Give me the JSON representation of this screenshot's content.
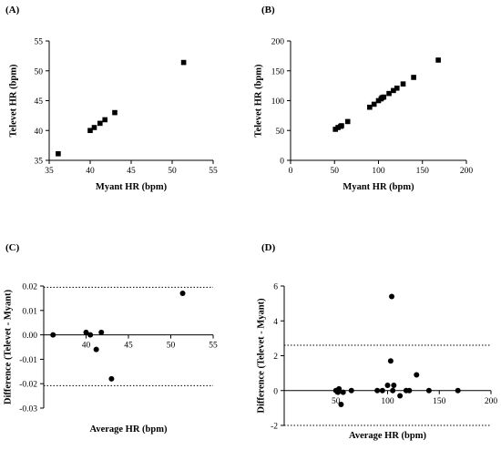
{
  "chart_data": [
    {
      "panel_label": "(A)",
      "type": "scatter",
      "marker": "square",
      "xlabel": "Myant HR (bpm)",
      "ylabel": "Televet HR (bpm)",
      "xlim": [
        35,
        55
      ],
      "ylim": [
        35,
        55
      ],
      "xticks": [
        35,
        40,
        45,
        50,
        55
      ],
      "yticks": [
        35,
        40,
        45,
        50,
        55
      ],
      "points": [
        {
          "x": 36.1,
          "y": 36.1
        },
        {
          "x": 40.0,
          "y": 40.0
        },
        {
          "x": 40.5,
          "y": 40.5
        },
        {
          "x": 41.2,
          "y": 41.2
        },
        {
          "x": 41.8,
          "y": 41.8
        },
        {
          "x": 43.0,
          "y": 43.0
        },
        {
          "x": 51.4,
          "y": 51.4
        }
      ]
    },
    {
      "panel_label": "(B)",
      "type": "scatter",
      "marker": "square",
      "xlabel": "Myant HR (bpm)",
      "ylabel": "Televet HR (bpm)",
      "xlim": [
        0,
        200
      ],
      "ylim": [
        0,
        200
      ],
      "xticks": [
        0,
        50,
        100,
        150,
        200
      ],
      "yticks": [
        0,
        50,
        100,
        150,
        200
      ],
      "points": [
        {
          "x": 51,
          "y": 52
        },
        {
          "x": 54,
          "y": 55
        },
        {
          "x": 57,
          "y": 57
        },
        {
          "x": 58,
          "y": 58
        },
        {
          "x": 65,
          "y": 65
        },
        {
          "x": 90,
          "y": 89
        },
        {
          "x": 95,
          "y": 94
        },
        {
          "x": 100,
          "y": 100
        },
        {
          "x": 103,
          "y": 103
        },
        {
          "x": 104,
          "y": 105
        },
        {
          "x": 106,
          "y": 106
        },
        {
          "x": 112,
          "y": 112
        },
        {
          "x": 117,
          "y": 117
        },
        {
          "x": 121,
          "y": 121
        },
        {
          "x": 128,
          "y": 128
        },
        {
          "x": 140,
          "y": 139
        },
        {
          "x": 168,
          "y": 168
        }
      ]
    },
    {
      "panel_label": "(C)",
      "type": "scatter",
      "marker": "circle",
      "xlabel": "Average HR (bpm)",
      "ylabel": "Difference (Televet - Myant)",
      "xlim": [
        35,
        55
      ],
      "ylim": [
        -0.03,
        0.02
      ],
      "xticks": [
        40,
        45,
        50,
        55
      ],
      "yticks": [
        -0.03,
        -0.02,
        -0.01,
        0.0,
        0.01,
        0.02
      ],
      "ytick_labels": [
        "-0.03",
        "-0.02",
        "-0.01",
        "0.00",
        "0.01",
        "0.02"
      ],
      "hlines": [
        0.0195,
        -0.0208
      ],
      "points": [
        {
          "x": 36.1,
          "y": 0.0
        },
        {
          "x": 40.0,
          "y": 0.001
        },
        {
          "x": 40.5,
          "y": 0.0
        },
        {
          "x": 41.2,
          "y": -0.006
        },
        {
          "x": 41.8,
          "y": 0.001
        },
        {
          "x": 43.0,
          "y": -0.018
        },
        {
          "x": 51.4,
          "y": 0.017
        }
      ]
    },
    {
      "panel_label": "(D)",
      "type": "scatter",
      "marker": "circle",
      "xlabel": "Average HR (bpm)",
      "ylabel": "Difference (Televet - Myant)",
      "xlim": [
        0,
        200
      ],
      "ylim": [
        -2,
        6
      ],
      "xticks": [
        50,
        100,
        150,
        200
      ],
      "yticks": [
        -2,
        0,
        2,
        4,
        6
      ],
      "hlines": [
        2.6,
        -2.0
      ],
      "points": [
        {
          "x": 50,
          "y": 0.0
        },
        {
          "x": 52,
          "y": -0.1
        },
        {
          "x": 53,
          "y": 0.1
        },
        {
          "x": 55,
          "y": -0.8
        },
        {
          "x": 57,
          "y": -0.1
        },
        {
          "x": 65,
          "y": 0.0
        },
        {
          "x": 90,
          "y": 0.0
        },
        {
          "x": 95,
          "y": 0.0
        },
        {
          "x": 100,
          "y": 0.3
        },
        {
          "x": 103,
          "y": 1.7
        },
        {
          "x": 104,
          "y": 5.4
        },
        {
          "x": 105,
          "y": 0.0
        },
        {
          "x": 106,
          "y": 0.3
        },
        {
          "x": 112,
          "y": -0.3
        },
        {
          "x": 118,
          "y": 0.0
        },
        {
          "x": 121,
          "y": 0.0
        },
        {
          "x": 128,
          "y": 0.9
        },
        {
          "x": 140,
          "y": 0.0
        },
        {
          "x": 168,
          "y": 0.0
        }
      ]
    }
  ]
}
